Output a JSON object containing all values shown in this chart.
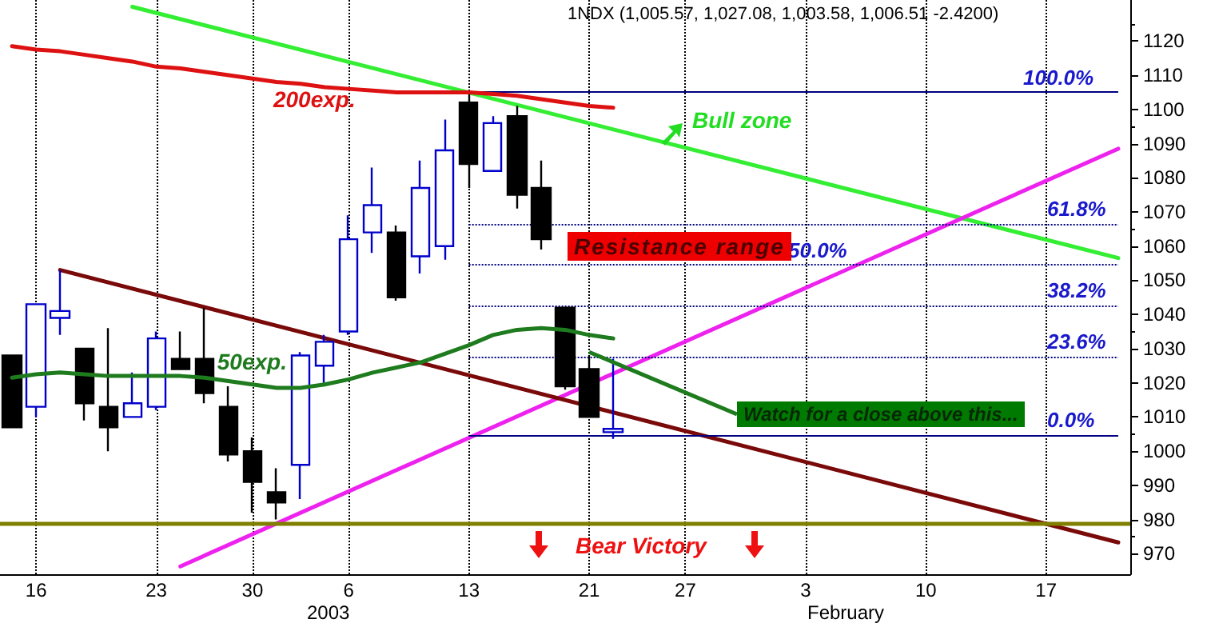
{
  "chart_data": {
    "type": "candlestick",
    "title": "1NDX (1,005.57, 1,027.08, 1,003.58, 1,006.51 -2.4200)",
    "categories": [
      null,
      "16",
      null,
      null,
      null,
      null,
      "23",
      null,
      null,
      null,
      "30",
      null,
      null,
      null,
      "6",
      null,
      null,
      null,
      null,
      "13",
      null,
      null,
      null,
      null,
      "21",
      null,
      null,
      null,
      "27",
      null,
      null,
      null,
      null,
      "3",
      null,
      null,
      null,
      null,
      "10",
      null,
      null,
      null,
      null,
      "17",
      null,
      null,
      null
    ],
    "ohlc": [
      [
        1028,
        1028,
        1007,
        1007
      ],
      [
        1013,
        1043,
        1010,
        1043
      ],
      [
        1039,
        1053,
        1034,
        1041
      ],
      [
        1030,
        1030,
        1009,
        1014
      ],
      [
        1013,
        1036,
        1000,
        1007
      ],
      [
        1010,
        1023,
        1010,
        1014
      ],
      [
        1013,
        1035,
        1012,
        1033
      ],
      [
        1027,
        1035,
        1024,
        1024
      ],
      [
        1027,
        1042,
        1014,
        1017
      ],
      [
        1013,
        1019,
        997,
        999
      ],
      [
        1000,
        1004,
        982,
        991
      ],
      [
        988,
        995,
        980,
        985
      ],
      [
        996,
        1029,
        986,
        1028
      ],
      [
        1025,
        1034,
        1020,
        1032
      ],
      [
        1035,
        1069,
        1034,
        1062
      ],
      [
        1064,
        1083,
        1058,
        1072
      ],
      [
        1064,
        1066,
        1044,
        1045
      ],
      [
        1057,
        1085,
        1052,
        1077
      ],
      [
        1060,
        1097,
        1056,
        1088
      ],
      [
        1102,
        1105,
        1077,
        1084
      ],
      [
        1082,
        1098,
        1082,
        1096
      ],
      [
        1098,
        1101,
        1071,
        1075
      ],
      [
        1077,
        1085,
        1059,
        1062
      ],
      [
        1042,
        1042,
        1018,
        1019
      ],
      [
        1024,
        1028,
        1010,
        1010
      ],
      [
        1005.57,
        1027.08,
        1003.58,
        1006.51
      ],
      null,
      null,
      null,
      null,
      null,
      null,
      null,
      null,
      null,
      null,
      null,
      null,
      null,
      null,
      null,
      null,
      null,
      null,
      null,
      null,
      null
    ],
    "colors": [
      "#000000",
      "#0000cc",
      "#0000cc",
      "#000000",
      "#000000",
      "#0000cc",
      "#0000cc",
      "#000000",
      "#000000",
      "#000000",
      "#000000",
      "#000000",
      "#0000cc",
      "#0000cc",
      "#0000cc",
      "#0000cc",
      "#000000",
      "#0000cc",
      "#0000cc",
      "#000000",
      "#0000cc",
      "#000000",
      "#000000",
      "#000000",
      "#000000",
      "#0000cc",
      null,
      null,
      null,
      null,
      null,
      null,
      null,
      null,
      null,
      null,
      null,
      null,
      null,
      null,
      null,
      null,
      null,
      null,
      null,
      null,
      null
    ],
    "series": [
      {
        "type": "line",
        "name": "200exp.",
        "color": "#dd1111",
        "values": [
          1118.5,
          1117.5,
          1117,
          1116,
          1115,
          1114,
          1112.5,
          1112,
          1111,
          1110,
          1109,
          1108,
          1107.5,
          1106.5,
          1106,
          1105.5,
          1105,
          1105,
          1105,
          1105,
          1104.5,
          1104,
          1103,
          1102,
          1101,
          1100.5,
          null,
          null,
          null,
          null,
          null,
          null,
          null,
          null,
          null,
          null,
          null,
          null,
          null,
          null,
          null,
          null,
          null,
          null,
          null,
          null,
          null
        ]
      },
      {
        "type": "line",
        "name": "50exp.",
        "color": "#1e7b1e",
        "values": [
          1021.5,
          1022.5,
          1023,
          1022.5,
          1022,
          1022,
          1022,
          1022,
          1021.5,
          1020.5,
          1019.5,
          1018.5,
          1018.5,
          1019.5,
          1021,
          1023,
          1024.5,
          1026,
          1028.5,
          1031,
          1034,
          1035.5,
          1036,
          1035.5,
          1034,
          1033,
          null,
          null,
          null,
          null,
          null,
          null,
          null,
          null,
          null,
          null,
          null,
          null,
          null,
          null,
          null,
          null,
          null,
          null,
          null,
          null,
          null
        ]
      },
      {
        "type": "line",
        "color": "#33ee33",
        "values": [
          null,
          null,
          null,
          null,
          null,
          1130,
          null,
          null,
          null,
          null,
          null,
          null,
          null,
          null,
          null,
          null,
          null,
          null,
          null,
          null,
          null,
          null,
          null,
          null,
          null,
          null,
          null,
          null,
          null,
          null,
          null,
          null,
          null,
          null,
          null,
          null,
          null,
          null,
          null,
          null,
          null,
          null,
          null,
          null,
          null,
          null,
          1056.5
        ]
      },
      {
        "type": "line",
        "color": "#ee22ee",
        "values": [
          null,
          null,
          null,
          null,
          null,
          null,
          null,
          966.3,
          null,
          null,
          null,
          null,
          null,
          null,
          null,
          null,
          null,
          null,
          null,
          null,
          null,
          null,
          null,
          null,
          null,
          null,
          null,
          null,
          null,
          null,
          null,
          null,
          null,
          null,
          null,
          null,
          null,
          null,
          null,
          null,
          null,
          null,
          null,
          null,
          null,
          null,
          1088.5
        ]
      },
      {
        "type": "line",
        "color": "#7a0a0a",
        "values": [
          null,
          null,
          1053,
          null,
          null,
          null,
          null,
          null,
          null,
          null,
          null,
          null,
          null,
          null,
          null,
          null,
          null,
          null,
          null,
          null,
          null,
          null,
          null,
          null,
          null,
          null,
          null,
          null,
          null,
          null,
          null,
          null,
          null,
          null,
          null,
          null,
          null,
          null,
          null,
          null,
          null,
          null,
          null,
          null,
          null,
          null,
          973.3
        ]
      }
    ],
    "ref_lines": [
      {
        "axis": "y",
        "value": 1105,
        "color": "#000080",
        "line_style": "solid"
      },
      {
        "axis": "y",
        "value": 1066.5,
        "color": "#000080",
        "line_style": "dotted"
      },
      {
        "axis": "y",
        "value": 1054.5,
        "color": "#000080",
        "line_style": "dotted"
      },
      {
        "axis": "y",
        "value": 1042.5,
        "color": "#000080",
        "line_style": "dotted"
      },
      {
        "axis": "y",
        "value": 1027.5,
        "color": "#000080",
        "line_style": "dotted"
      },
      {
        "axis": "y",
        "value": 1004.5,
        "color": "#000080",
        "line_style": "solid"
      },
      {
        "axis": "y",
        "value": 979,
        "color": "#808000",
        "line_style": "solid"
      }
    ],
    "annotations": [
      {
        "text": "100.0%",
        "y": 1105
      },
      {
        "text": "61.8%",
        "y": 1066.5
      },
      {
        "text": "50.0%",
        "y": 1054.5
      },
      {
        "text": "38.2%",
        "y": 1042.5
      },
      {
        "text": "23.6%",
        "y": 1027.5
      },
      {
        "text": "0.0%",
        "y": 1004.5
      },
      "Bull zone",
      "Resistance range",
      {
        "text": "Watch for a close above this...",
        "x": "21",
        "y": 1029
      },
      "Bear Victory",
      "2003",
      "February"
    ],
    "ylim": [
      964,
      1132
    ],
    "yticks": [
      970,
      980,
      990,
      1000,
      1010,
      1020,
      1030,
      1040,
      1050,
      1060,
      1070,
      1080,
      1090,
      1100,
      1110,
      1120
    ],
    "grid": "x",
    "legend": false,
    "marker": "none",
    "line_style": "solid"
  }
}
